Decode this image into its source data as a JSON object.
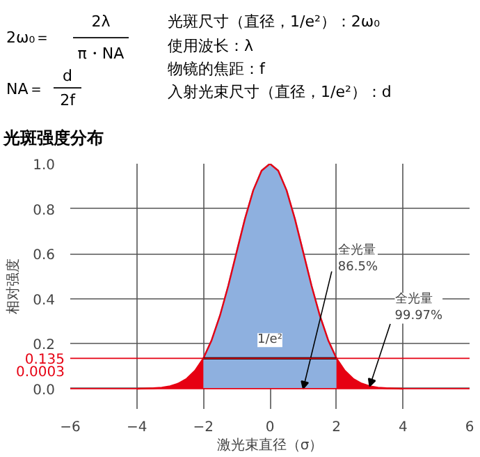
{
  "chart_data": {
    "type": "area",
    "title": "光斑强度分布",
    "xlabel": "激光束直径（σ）",
    "ylabel": "相对强度",
    "xlim": [
      -6,
      6
    ],
    "xticks": [
      {
        "value": -6,
        "label": "−6"
      },
      {
        "value": -4,
        "label": "−4"
      },
      {
        "value": -2,
        "label": "−2"
      },
      0,
      2,
      4,
      6
    ],
    "ylim": [
      -0.09,
      1.0
    ],
    "yticks": [
      {
        "value": 0,
        "label": "0.0"
      },
      0.2,
      0.4,
      0.6,
      0.8,
      {
        "value": 1,
        "label": "1.0"
      }
    ],
    "grid": true,
    "series": [
      {
        "color": "#e60012",
        "x": [
          -4,
          -3.75,
          -3.5,
          -3.25,
          -3,
          -2.75,
          -2.5,
          -2.25,
          -2,
          -1.75,
          -1.5,
          -1.25,
          -1,
          -0.75,
          -0.5,
          -0.25,
          0,
          0.25,
          0.5,
          0.75,
          1,
          1.25,
          1.5,
          1.75,
          2,
          2.25,
          2.5,
          2.75,
          3,
          3.25,
          3.5,
          3.75,
          4
        ],
        "values": [
          0.0,
          0.001,
          0.002,
          0.005,
          0.011,
          0.023,
          0.044,
          0.08,
          0.135,
          0.216,
          0.325,
          0.458,
          0.607,
          0.755,
          0.882,
          0.969,
          1.0,
          0.969,
          0.882,
          0.755,
          0.607,
          0.458,
          0.325,
          0.216,
          0.135,
          0.08,
          0.044,
          0.023,
          0.011,
          0.005,
          0.002,
          0.001,
          0.0
        ]
      },
      {
        "color": "#8eb0df",
        "x": [
          -2,
          -1.75,
          -1.5,
          -1.25,
          -1,
          -0.75,
          -0.5,
          -0.25,
          0,
          0.25,
          0.5,
          0.75,
          1,
          1.25,
          1.5,
          1.75,
          2
        ],
        "values": [
          0.135,
          0.216,
          0.325,
          0.458,
          0.607,
          0.755,
          0.882,
          0.969,
          1.0,
          0.969,
          0.882,
          0.755,
          0.607,
          0.458,
          0.325,
          0.216,
          0.135
        ]
      }
    ],
    "ref_lines": [
      {
        "axis": "y",
        "value": 0.135,
        "label": "0.135",
        "color": "#e60012"
      },
      {
        "axis": "y",
        "value": 0.0003,
        "label": "0.0003",
        "color": "#e60012"
      }
    ],
    "annotations": [
      "2ω₀＝",
      "2λ",
      "π・NA",
      "NA＝",
      "d",
      "2f",
      "光斑尺寸（直径，1/e²）：2ω₀",
      "使用波长：λ",
      "物镜的焦距：f",
      "入射光束尺寸（直径，1/e²）：d",
      {
        "text": "1/e²",
        "x": 0,
        "y": 0.135
      },
      {
        "text": "全光量\n86.5%",
        "x": 1,
        "y": 0
      },
      {
        "text": "全光量\n99.97%",
        "x": 3,
        "y": 0.011
      }
    ]
  }
}
